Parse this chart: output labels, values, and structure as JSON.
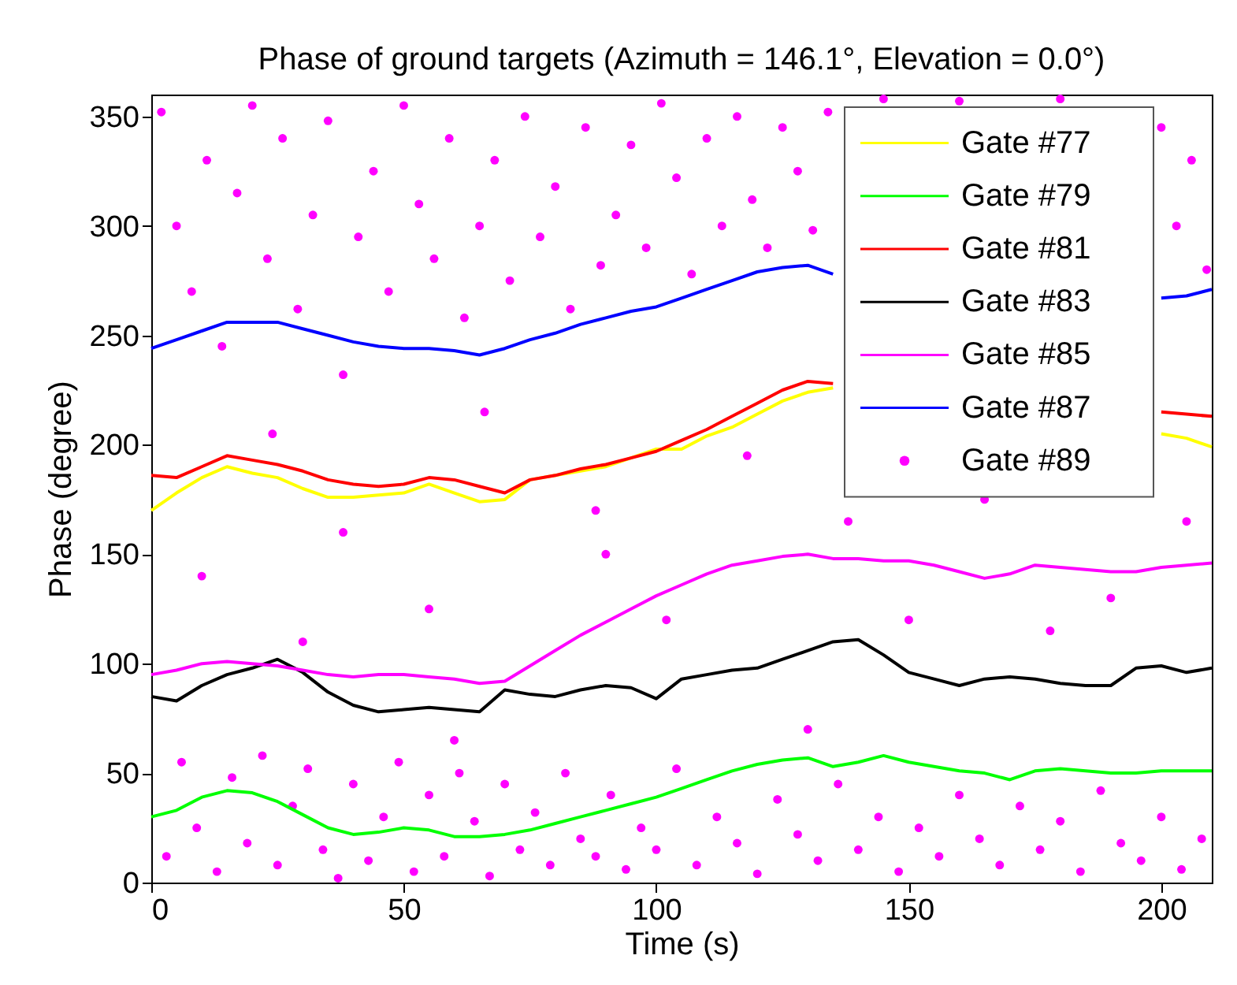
{
  "chart_data": {
    "type": "line",
    "title": "Phase of ground targets (Azimuth = 146.1°, Elevation = 0.0°)",
    "xlabel": "Time (s)",
    "ylabel": "Phase (degree)",
    "x": [
      0,
      5,
      10,
      15,
      20,
      25,
      30,
      35,
      40,
      45,
      50,
      55,
      60,
      65,
      70,
      75,
      80,
      85,
      90,
      95,
      100,
      105,
      110,
      115,
      120,
      125,
      130,
      135,
      140,
      145,
      150,
      155,
      160,
      165,
      170,
      175,
      180,
      185,
      190,
      195,
      200,
      205,
      210
    ],
    "xlim": [
      0,
      210
    ],
    "ylim": [
      0,
      360
    ],
    "xticks": [
      0,
      50,
      100,
      150,
      200
    ],
    "yticks": [
      0,
      50,
      100,
      150,
      200,
      250,
      300,
      350
    ],
    "grid": false,
    "legend": "top right",
    "line_style": "solid",
    "series": [
      {
        "name": "Gate #77",
        "color": "#ffff00",
        "values": [
          170,
          178,
          185,
          190,
          187,
          185,
          180,
          176,
          176,
          177,
          178,
          182,
          178,
          174,
          175,
          184,
          186,
          188,
          190,
          194,
          198,
          198,
          204,
          208,
          214,
          220,
          224,
          226,
          null,
          null,
          null,
          null,
          null,
          null,
          null,
          null,
          null,
          null,
          null,
          null,
          205,
          203,
          199
        ]
      },
      {
        "name": "Gate #79",
        "color": "#00ff00",
        "values": [
          30,
          33,
          39,
          42,
          41,
          37,
          31,
          25,
          22,
          23,
          25,
          24,
          21,
          21,
          22,
          24,
          27,
          30,
          33,
          36,
          39,
          43,
          47,
          51,
          54,
          56,
          57,
          53,
          55,
          58,
          55,
          53,
          51,
          50,
          47,
          51,
          52,
          51,
          50,
          50,
          51,
          51,
          51
        ]
      },
      {
        "name": "Gate #81",
        "color": "#ff0000",
        "values": [
          186,
          185,
          190,
          195,
          193,
          191,
          188,
          184,
          182,
          181,
          182,
          185,
          184,
          181,
          178,
          184,
          186,
          189,
          191,
          194,
          197,
          202,
          207,
          213,
          219,
          225,
          229,
          228,
          null,
          null,
          null,
          null,
          null,
          null,
          null,
          null,
          null,
          null,
          null,
          null,
          215,
          214,
          213
        ]
      },
      {
        "name": "Gate #83",
        "color": "#000000",
        "values": [
          85,
          83,
          90,
          95,
          98,
          102,
          96,
          87,
          81,
          78,
          79,
          80,
          79,
          78,
          88,
          86,
          85,
          88,
          90,
          89,
          84,
          93,
          95,
          97,
          98,
          102,
          106,
          110,
          111,
          104,
          96,
          93,
          90,
          93,
          94,
          93,
          91,
          90,
          90,
          98,
          99,
          96,
          98
        ]
      },
      {
        "name": "Gate #85",
        "color": "#ff00ff",
        "values": [
          95,
          97,
          100,
          101,
          100,
          99,
          97,
          95,
          94,
          95,
          95,
          94,
          93,
          91,
          92,
          99,
          106,
          113,
          119,
          125,
          131,
          136,
          141,
          145,
          147,
          149,
          150,
          148,
          148,
          147,
          147,
          145,
          142,
          139,
          141,
          145,
          144,
          143,
          142,
          142,
          144,
          145,
          146
        ]
      },
      {
        "name": "Gate #87",
        "color": "#0000ff",
        "values": [
          244,
          248,
          252,
          256,
          256,
          256,
          253,
          250,
          247,
          245,
          244,
          244,
          243,
          241,
          244,
          248,
          251,
          255,
          258,
          261,
          263,
          267,
          271,
          275,
          279,
          281,
          282,
          278,
          null,
          null,
          null,
          null,
          null,
          null,
          null,
          null,
          null,
          null,
          null,
          null,
          267,
          268,
          271
        ]
      },
      {
        "name": "Gate #89",
        "type": "scatter",
        "marker": "circle",
        "color": "#ff00ff",
        "x": [
          2,
          5,
          8,
          11,
          14,
          17,
          20,
          23,
          26,
          29,
          32,
          35,
          38,
          41,
          44,
          47,
          50,
          53,
          56,
          59,
          62,
          65,
          68,
          71,
          74,
          77,
          80,
          83,
          86,
          89,
          92,
          95,
          98,
          101,
          104,
          107,
          110,
          113,
          116,
          119,
          122,
          125,
          128,
          131,
          134,
          145,
          160,
          180,
          200,
          203,
          206,
          209,
          3,
          6,
          9,
          13,
          16,
          19,
          22,
          25,
          28,
          31,
          34,
          37,
          40,
          43,
          46,
          49,
          52,
          55,
          58,
          61,
          64,
          67,
          70,
          73,
          76,
          79,
          82,
          85,
          88,
          91,
          94,
          97,
          100,
          104,
          108,
          112,
          116,
          120,
          124,
          128,
          132,
          136,
          140,
          144,
          148,
          152,
          156,
          160,
          164,
          168,
          172,
          176,
          180,
          184,
          188,
          192,
          196,
          200,
          204,
          208,
          10,
          24,
          38,
          55,
          66,
          88,
          102,
          118,
          138,
          150,
          165,
          178,
          190,
          205,
          60,
          130,
          30,
          90
        ],
        "values": [
          352,
          300,
          270,
          330,
          245,
          315,
          355,
          285,
          340,
          262,
          305,
          348,
          232,
          295,
          325,
          270,
          355,
          310,
          285,
          340,
          258,
          300,
          330,
          275,
          350,
          295,
          318,
          262,
          345,
          282,
          305,
          337,
          290,
          356,
          322,
          278,
          340,
          300,
          350,
          312,
          290,
          345,
          325,
          298,
          352,
          358,
          357,
          358,
          345,
          300,
          330,
          280,
          12,
          55,
          25,
          5,
          48,
          18,
          58,
          8,
          35,
          52,
          15,
          2,
          45,
          10,
          30,
          55,
          5,
          40,
          12,
          50,
          28,
          3,
          45,
          15,
          32,
          8,
          50,
          20,
          12,
          40,
          6,
          25,
          15,
          52,
          8,
          30,
          18,
          4,
          38,
          22,
          10,
          45,
          15,
          30,
          5,
          25,
          12,
          40,
          20,
          8,
          35,
          15,
          28,
          5,
          42,
          18,
          10,
          30,
          6,
          20,
          140,
          205,
          160,
          125,
          215,
          170,
          120,
          195,
          165,
          120,
          175,
          115,
          130,
          165,
          65,
          70,
          110,
          150
        ]
      }
    ]
  }
}
